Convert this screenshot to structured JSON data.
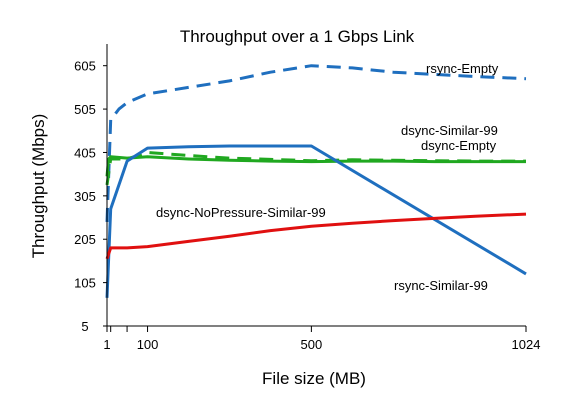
{
  "chart_data": {
    "type": "line",
    "title": "Throughput over a 1 Gbps Link",
    "xlabel": "File size (MB)",
    "ylabel": "Throughput (Mbps)",
    "xlim": [
      1,
      1024
    ],
    "ylim": [
      5,
      655
    ],
    "x_ticks": [
      1,
      10,
      50,
      100,
      500,
      1024
    ],
    "x_tick_labels": [
      "1",
      "",
      "",
      "100",
      "500",
      "1024"
    ],
    "y_ticks": [
      5,
      105,
      205,
      305,
      405,
      505,
      605
    ],
    "y_tick_labels": [
      "5",
      "105",
      "205",
      "305",
      "405",
      "505",
      "605"
    ],
    "grid": false,
    "series": [
      {
        "name": "rsync-Empty",
        "color": "#1f6fbf",
        "dash": true,
        "x": [
          1,
          10,
          30,
          50,
          100,
          200,
          300,
          400,
          500,
          600,
          700,
          800,
          900,
          1024
        ],
        "y": [
          245,
          480,
          505,
          520,
          540,
          555,
          570,
          590,
          605,
          600,
          590,
          585,
          580,
          575
        ]
      },
      {
        "name": "dsync-Similar-99",
        "color": "#20a820",
        "dash": true,
        "x": [
          1,
          10,
          50,
          100,
          200,
          300,
          400,
          500,
          600,
          700,
          800,
          900,
          1024
        ],
        "y": [
          330,
          390,
          390,
          405,
          398,
          392,
          389,
          386,
          388,
          387,
          386,
          385,
          385
        ]
      },
      {
        "name": "dsync-Empty",
        "color": "#20a820",
        "dash": false,
        "x": [
          1,
          5,
          10,
          50,
          100,
          200,
          300,
          400,
          500,
          600,
          700,
          800,
          900,
          1024
        ],
        "y": [
          350,
          390,
          395,
          392,
          395,
          390,
          387,
          385,
          384,
          385,
          385,
          384,
          384,
          384
        ]
      },
      {
        "name": "rsync-Similar-99",
        "color": "#1f6fbf",
        "dash": false,
        "x": [
          1,
          10,
          50,
          100,
          200,
          300,
          400,
          500,
          1024
        ],
        "y": [
          70,
          275,
          385,
          415,
          418,
          420,
          420,
          420,
          125
        ]
      },
      {
        "name": "dsync-NoPressure-Similar-99",
        "color": "#e01010",
        "dash": false,
        "x": [
          1,
          10,
          50,
          100,
          200,
          300,
          400,
          500,
          600,
          700,
          800,
          900,
          1024
        ],
        "y": [
          160,
          185,
          185,
          188,
          200,
          212,
          225,
          235,
          242,
          248,
          253,
          258,
          263
        ]
      }
    ]
  }
}
